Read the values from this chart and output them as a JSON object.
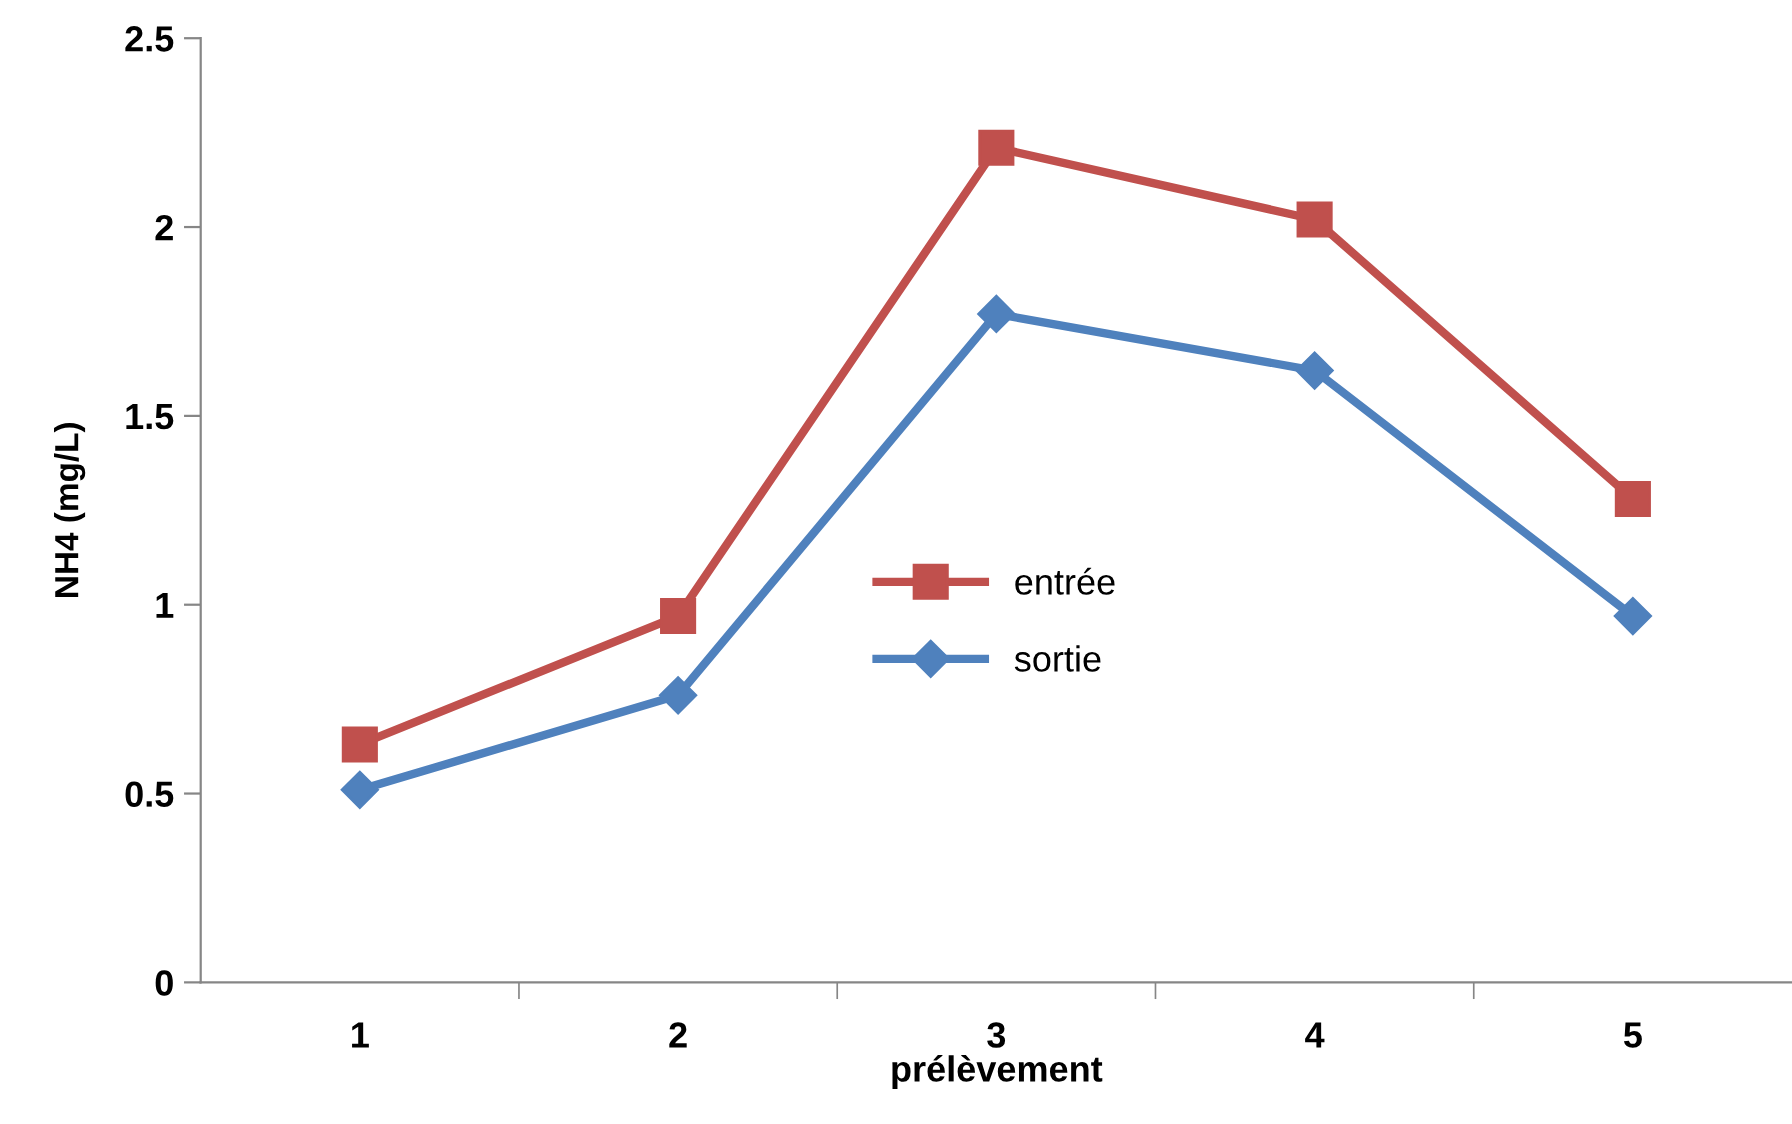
{
  "chart_data": {
    "type": "line",
    "xlabel": "prélèvement",
    "ylabel": "NH4 (mg/L)",
    "categories": [
      "1",
      "2",
      "3",
      "4",
      "5"
    ],
    "series": [
      {
        "name": "entrée",
        "color": "#c0504d",
        "marker": "square",
        "values": [
          0.63,
          0.97,
          2.21,
          2.02,
          1.28
        ]
      },
      {
        "name": "sortie",
        "color": "#4f81bd",
        "marker": "diamond",
        "values": [
          0.51,
          0.76,
          1.77,
          1.62,
          0.97
        ]
      }
    ],
    "ylim": [
      0,
      2.5
    ],
    "yticks": [
      0,
      0.5,
      1,
      1.5,
      2,
      2.5
    ],
    "grid": false,
    "legend": "center",
    "line_style": "solid"
  }
}
